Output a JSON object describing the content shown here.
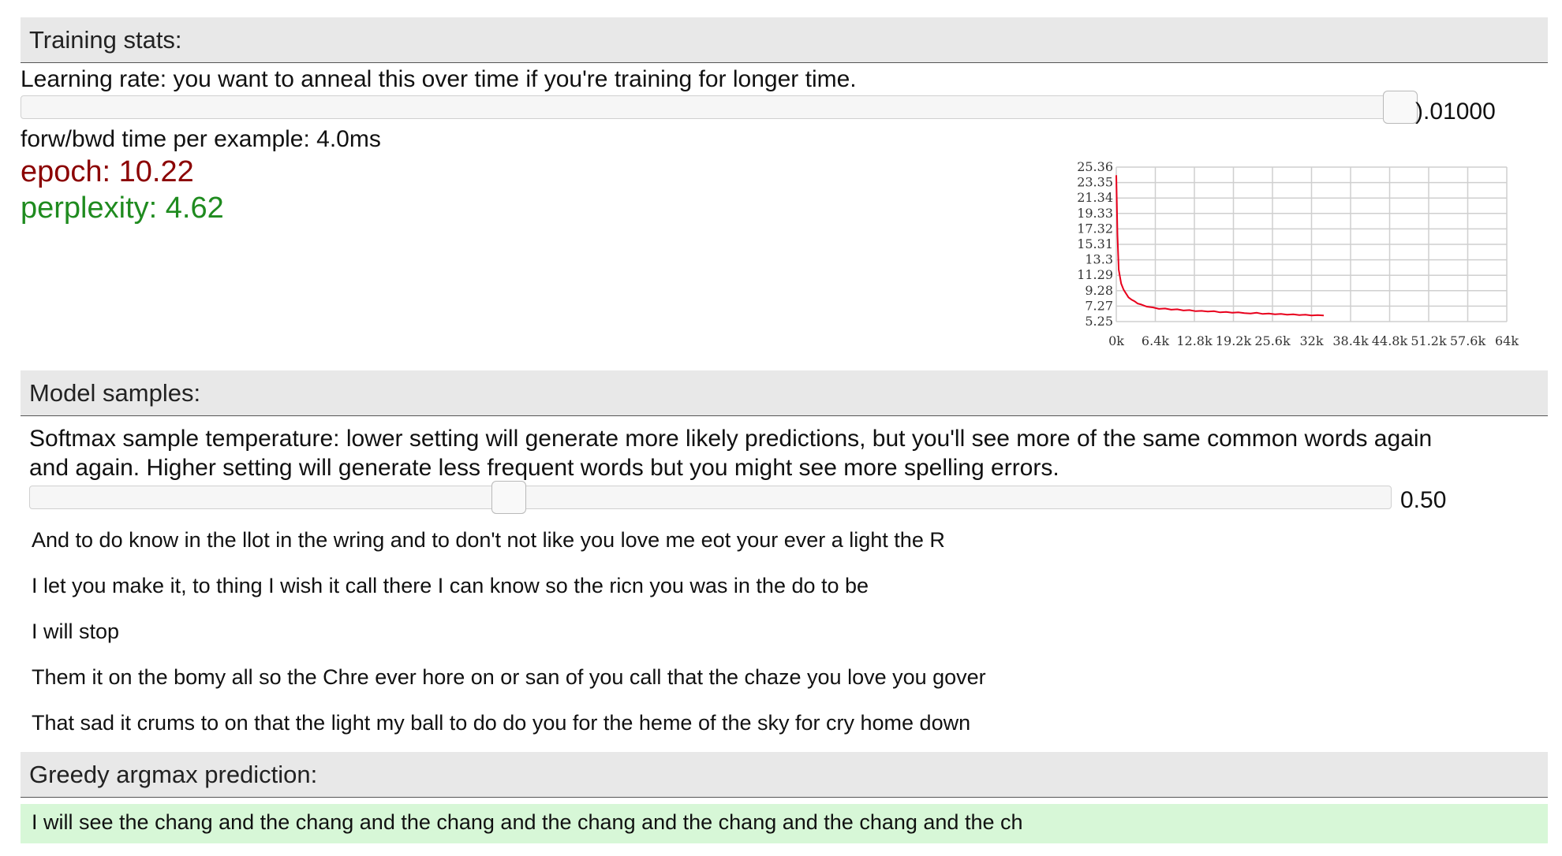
{
  "training": {
    "header": "Training stats:",
    "lr_description": "Learning rate: you want to anneal this over time if you're training for longer time.",
    "lr_value": ").01000",
    "lr_slider_level": 0.95,
    "time_text": "forw/bwd time per example: 4.0ms",
    "epoch_text": "epoch: 10.22",
    "perplexity_text": "perplexity: 4.62",
    "colors": {
      "epoch": "#8b0000",
      "perplexity": "#1f8b1f"
    }
  },
  "chart_data": {
    "type": "line",
    "series_color": "#e8001c",
    "y_ticks": [
      "25.36",
      "23.35",
      "21.34",
      "19.33",
      "17.32",
      "15.31",
      "13.3",
      "11.29",
      "9.28",
      "7.27",
      "5.25"
    ],
    "x_ticks": [
      "0k",
      "6.4k",
      "12.8k",
      "19.2k",
      "25.6k",
      "32k",
      "38.4k",
      "44.8k",
      "51.2k",
      "57.6k",
      "64k"
    ],
    "ylim": [
      5.25,
      25.36
    ],
    "xlim": [
      0,
      64000
    ],
    "grid": true,
    "series": [
      {
        "x": [
          0,
          200,
          400,
          800,
          1200,
          1600,
          2000,
          2500,
          3000,
          3500,
          4000,
          5000,
          6000,
          7000,
          8000,
          9000,
          10000,
          11000,
          12000,
          13000,
          14000,
          15000,
          16000,
          17000,
          18000,
          19000,
          20000,
          21000,
          22000,
          23000,
          24000,
          25000,
          26000,
          27000,
          28000,
          29000,
          30000,
          31000,
          32000,
          33000,
          34000
        ],
        "y": [
          24.3,
          16.5,
          12.0,
          10.2,
          9.4,
          8.9,
          8.4,
          8.1,
          7.9,
          7.6,
          7.5,
          7.2,
          7.1,
          6.9,
          6.95,
          6.8,
          6.85,
          6.7,
          6.75,
          6.6,
          6.65,
          6.55,
          6.6,
          6.45,
          6.5,
          6.4,
          6.45,
          6.35,
          6.3,
          6.4,
          6.25,
          6.3,
          6.2,
          6.25,
          6.15,
          6.2,
          6.1,
          6.15,
          6.05,
          6.1,
          6.05
        ]
      }
    ]
  },
  "samples": {
    "header": "Model samples:",
    "temp_description_line1": "Softmax sample temperature: lower setting will generate more likely predictions, but you'll see more of the same common words again",
    "temp_description_line2": "and again. Higher setting will generate less frequent words but you might see more spelling errors.",
    "temp_value": "0.50",
    "temp_slider_level": 0.35,
    "lines": [
      "And to do know in the llot in the wring and to don't not like you love me eot your ever a light the R",
      "I let you make it, to thing I wish it call there I can know so the ricn you was in the do to be",
      "I will stop",
      "Them it on the bomy all so the Chre ever hore on or san of you call that the chaze you love you gover",
      "That sad it crums to on that the light my ball to do do you for the heme of the sky for cry home down"
    ]
  },
  "greedy": {
    "header": "Greedy argmax prediction:",
    "text": "I will see the chang and the chang and the chang and the chang and the chang and the chang and the ch",
    "background": "#d7f7d7"
  }
}
